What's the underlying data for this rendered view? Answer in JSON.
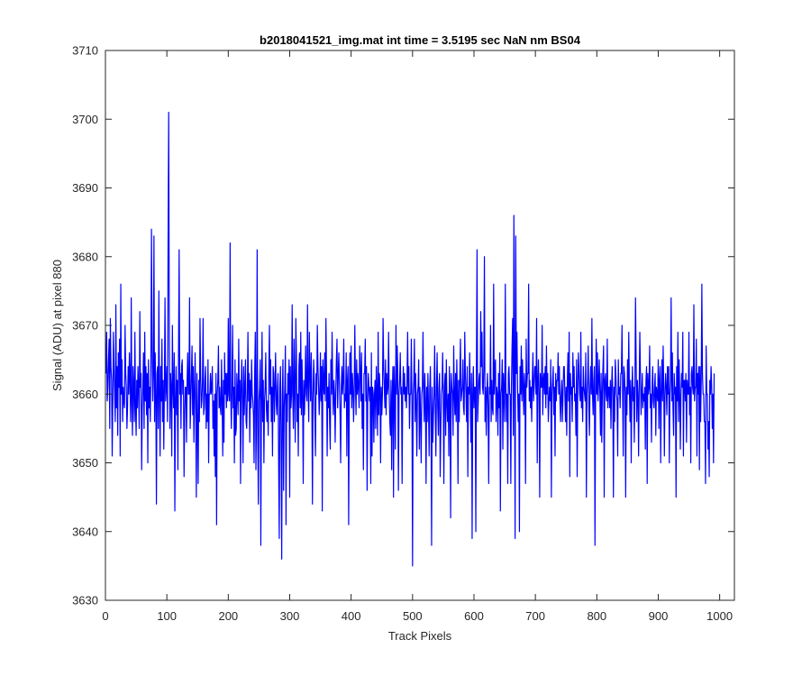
{
  "chart_data": {
    "type": "line",
    "title": "b2018041521_img.mat int time = 3.5195 sec  NaN nm BS04",
    "xlabel": "Track Pixels",
    "ylabel": "Signal (ADU) at pixel 880",
    "xlim": [
      0,
      1024
    ],
    "ylim": [
      3630,
      3710
    ],
    "xticks": [
      0,
      100,
      200,
      300,
      400,
      500,
      600,
      700,
      800,
      900,
      1000
    ],
    "yticks": [
      3630,
      3640,
      3650,
      3660,
      3670,
      3680,
      3690,
      3700,
      3710
    ],
    "grid": false,
    "series": [
      {
        "color": "#0000ff",
        "x_start": 1,
        "x_step": 1,
        "values": [
          3663,
          3669,
          3659,
          3661,
          3665,
          3668,
          3655,
          3671,
          3664,
          3662,
          3651,
          3659,
          3669,
          3664,
          3660,
          3656,
          3673,
          3658,
          3664,
          3654,
          3666,
          3661,
          3668,
          3651,
          3676,
          3660,
          3665,
          3656,
          3661,
          3659,
          3658,
          3670,
          3663,
          3661,
          3655,
          3658,
          3664,
          3660,
          3666,
          3662,
          3656,
          3674,
          3659,
          3654,
          3664,
          3661,
          3656,
          3669,
          3658,
          3654,
          3662,
          3658,
          3664,
          3661,
          3655,
          3672,
          3661,
          3663,
          3649,
          3658,
          3661,
          3666,
          3655,
          3669,
          3659,
          3664,
          3657,
          3663,
          3650,
          3665,
          3658,
          3661,
          3656,
          3664,
          3684,
          3667,
          3659,
          3663,
          3683,
          3656,
          3666,
          3660,
          3644,
          3663,
          3664,
          3655,
          3675,
          3660,
          3651,
          3664,
          3659,
          3668,
          3656,
          3662,
          3652,
          3661,
          3674,
          3659,
          3661,
          3664,
          3656,
          3682,
          3701,
          3668,
          3655,
          3663,
          3661,
          3651,
          3670,
          3661,
          3658,
          3666,
          3643,
          3659,
          3664,
          3657,
          3662,
          3649,
          3666,
          3681,
          3660,
          3663,
          3655,
          3664,
          3665,
          3660,
          3662,
          3648,
          3657,
          3661,
          3661,
          3653,
          3662,
          3666,
          3660,
          3660,
          3674,
          3655,
          3659,
          3663,
          3667,
          3657,
          3664,
          3653,
          3660,
          3666,
          3658,
          3645,
          3663,
          3656,
          3647,
          3662,
          3656,
          3671,
          3663,
          3658,
          3659,
          3662,
          3671,
          3657,
          3658,
          3662,
          3664,
          3655,
          3660,
          3656,
          3665,
          3650,
          3660,
          3660,
          3663,
          3660,
          3661,
          3664,
          3655,
          3659,
          3651,
          3660,
          3648,
          3663,
          3641,
          3660,
          3662,
          3667,
          3658,
          3661,
          3658,
          3657,
          3665,
          3659,
          3651,
          3662,
          3653,
          3666,
          3660,
          3663,
          3658,
          3663,
          3659,
          3671,
          3660,
          3659,
          3682,
          3660,
          3655,
          3661,
          3670,
          3658,
          3661,
          3650,
          3665,
          3654,
          3655,
          3663,
          3660,
          3657,
          3668,
          3659,
          3662,
          3647,
          3661,
          3665,
          3659,
          3650,
          3664,
          3657,
          3661,
          3665,
          3656,
          3655,
          3660,
          3669,
          3659,
          3663,
          3653,
          3662,
          3658,
          3665,
          3660,
          3659,
          3657,
          3650,
          3663,
          3669,
          3649,
          3657,
          3681,
          3653,
          3644,
          3659,
          3661,
          3665,
          3638,
          3660,
          3669,
          3656,
          3662,
          3650,
          3659,
          3661,
          3666,
          3658,
          3656,
          3659,
          3654,
          3663,
          3670,
          3660,
          3665,
          3656,
          3661,
          3651,
          3664,
          3663,
          3656,
          3661,
          3666,
          3659,
          3657,
          3661,
          3663,
          3650,
          3639,
          3661,
          3664,
          3653,
          3636,
          3660,
          3665,
          3646,
          3658,
          3661,
          3667,
          3641,
          3660,
          3656,
          3663,
          3660,
          3665,
          3645,
          3664,
          3658,
          3660,
          3673,
          3660,
          3655,
          3668,
          3661,
          3653,
          3671,
          3665,
          3656,
          3660,
          3651,
          3664,
          3666,
          3658,
          3669,
          3657,
          3665,
          3660,
          3647,
          3662,
          3657,
          3661,
          3667,
          3660,
          3659,
          3673,
          3661,
          3656,
          3669,
          3663,
          3659,
          3666,
          3660,
          3644,
          3659,
          3665,
          3662,
          3657,
          3651,
          3663,
          3660,
          3670,
          3664,
          3661,
          3657,
          3660,
          3666,
          3659,
          3664,
          3643,
          3665,
          3662,
          3660,
          3666,
          3659,
          3671,
          3663,
          3651,
          3661,
          3658,
          3663,
          3656,
          3652,
          3665,
          3660,
          3669,
          3661,
          3657,
          3662,
          3660,
          3653,
          3660,
          3665,
          3668,
          3658,
          3663,
          3666,
          3661,
          3657,
          3650,
          3661,
          3664,
          3660,
          3662,
          3668,
          3658,
          3660,
          3659,
          3666,
          3651,
          3662,
          3664,
          3641,
          3659,
          3666,
          3660,
          3667,
          3658,
          3663,
          3661,
          3656,
          3660,
          3670,
          3662,
          3657,
          3665,
          3660,
          3663,
          3661,
          3658,
          3667,
          3663,
          3659,
          3666,
          3655,
          3660,
          3649,
          3663,
          3663,
          3668,
          3659,
          3664,
          3646,
          3659,
          3663,
          3661,
          3659,
          3661,
          3647,
          3666,
          3651,
          3661,
          3660,
          3653,
          3660,
          3662,
          3655,
          3664,
          3660,
          3654,
          3669,
          3657,
          3663,
          3661,
          3650,
          3661,
          3657,
          3660,
          3671,
          3664,
          3661,
          3658,
          3665,
          3657,
          3663,
          3660,
          3661,
          3669,
          3660,
          3656,
          3654,
          3662,
          3649,
          3660,
          3664,
          3645,
          3664,
          3660,
          3652,
          3670,
          3660,
          3667,
          3663,
          3646,
          3660,
          3662,
          3666,
          3660,
          3661,
          3647,
          3660,
          3664,
          3660,
          3663,
          3659,
          3661,
          3658,
          3662,
          3669,
          3660,
          3664,
          3655,
          3660,
          3660,
          3668,
          3659,
          3635,
          3660,
          3662,
          3668,
          3656,
          3663,
          3659,
          3651,
          3660,
          3661,
          3665,
          3652,
          3661,
          3657,
          3650,
          3660,
          3661,
          3669,
          3660,
          3656,
          3663,
          3659,
          3647,
          3661,
          3656,
          3663,
          3658,
          3651,
          3661,
          3664,
          3657,
          3638,
          3661,
          3653,
          3657,
          3660,
          3667,
          3658,
          3651,
          3661,
          3666,
          3658,
          3654,
          3661,
          3663,
          3648,
          3655,
          3660,
          3661,
          3666,
          3660,
          3647,
          3661,
          3663,
          3654,
          3665,
          3659,
          3656,
          3660,
          3651,
          3664,
          3660,
          3642,
          3663,
          3661,
          3660,
          3654,
          3667,
          3660,
          3657,
          3663,
          3656,
          3665,
          3660,
          3647,
          3662,
          3656,
          3663,
          3668,
          3659,
          3660,
          3661,
          3665,
          3658,
          3657,
          3669,
          3663,
          3660,
          3656,
          3664,
          3648,
          3661,
          3660,
          3666,
          3660,
          3653,
          3663,
          3639,
          3660,
          3664,
          3658,
          3661,
          3661,
          3640,
          3664,
          3681,
          3656,
          3659,
          3662,
          3663,
          3660,
          3672,
          3664,
          3669,
          3661,
          3660,
          3664,
          3680,
          3656,
          3661,
          3654,
          3660,
          3663,
          3658,
          3647,
          3661,
          3660,
          3670,
          3656,
          3662,
          3658,
          3657,
          3676,
          3660,
          3664,
          3665,
          3656,
          3661,
          3660,
          3654,
          3663,
          3658,
          3666,
          3643,
          3660,
          3661,
          3665,
          3652,
          3663,
          3660,
          3656,
          3676,
          3661,
          3656,
          3660,
          3647,
          3663,
          3664,
          3660,
          3660,
          3647,
          3661,
          3667,
          3671,
          3654,
          3686,
          3664,
          3639,
          3683,
          3663,
          3669,
          3661,
          3656,
          3660,
          3640,
          3664,
          3660,
          3667,
          3659,
          3665,
          3661,
          3657,
          3663,
          3661,
          3647,
          3668,
          3661,
          3663,
          3663,
          3676,
          3659,
          3662,
          3658,
          3661,
          3656,
          3662,
          3666,
          3659,
          3661,
          3664,
          3664,
          3660,
          3671,
          3650,
          3662,
          3665,
          3660,
          3645,
          3663,
          3661,
          3661,
          3670,
          3657,
          3662,
          3663,
          3660,
          3664,
          3658,
          3667,
          3660,
          3663,
          3656,
          3659,
          3661,
          3659,
          3665,
          3645,
          3660,
          3662,
          3664,
          3657,
          3661,
          3651,
          3663,
          3659,
          3662,
          3662,
          3666,
          3660,
          3664,
          3659,
          3656,
          3660,
          3662,
          3656,
          3660,
          3664,
          3664,
          3660,
          3656,
          3661,
          3654,
          3662,
          3666,
          3659,
          3669,
          3648,
          3663,
          3660,
          3661,
          3656,
          3666,
          3661,
          3664,
          3659,
          3660,
          3654,
          3665,
          3648,
          3661,
          3666,
          3663,
          3660,
          3659,
          3669,
          3658,
          3661,
          3656,
          3664,
          3661,
          3660,
          3659,
          3666,
          3645,
          3660,
          3662,
          3667,
          3658,
          3654,
          3661,
          3664,
          3660,
          3671,
          3660,
          3657,
          3662,
          3664,
          3638,
          3659,
          3668,
          3660,
          3666,
          3659,
          3662,
          3665,
          3660,
          3654,
          3663,
          3653,
          3660,
          3664,
          3667,
          3645,
          3662,
          3663,
          3660,
          3659,
          3668,
          3658,
          3661,
          3661,
          3658,
          3662,
          3655,
          3661,
          3664,
          3660,
          3645,
          3661,
          3656,
          3665,
          3663,
          3660,
          3659,
          3651,
          3665,
          3660,
          3661,
          3658,
          3663,
          3663,
          3670,
          3660,
          3651,
          3664,
          3663,
          3660,
          3645,
          3661,
          3657,
          3665,
          3660,
          3669,
          3661,
          3656,
          3662,
          3650,
          3660,
          3664,
          3659,
          3661,
          3653,
          3660,
          3674,
          3665,
          3656,
          3662,
          3660,
          3651,
          3661,
          3669,
          3663,
          3657,
          3660,
          3663,
          3658,
          3660,
          3659,
          3661,
          3652,
          3662,
          3664,
          3647,
          3663,
          3660,
          3661,
          3667,
          3658,
          3660,
          3653,
          3661,
          3664,
          3659,
          3658,
          3661,
          3663,
          3654,
          3661,
          3660,
          3659,
          3665,
          3655,
          3662,
          3664,
          3650,
          3660,
          3665,
          3659,
          3667,
          3661,
          3651,
          3660,
          3663,
          3661,
          3657,
          3664,
          3660,
          3664,
          3650,
          3660,
          3662,
          3674,
          3659,
          3666,
          3658,
          3654,
          3663,
          3660,
          3661,
          3645,
          3664,
          3659,
          3669,
          3656,
          3665,
          3660,
          3652,
          3660,
          3663,
          3661,
          3669,
          3651,
          3662,
          3662,
          3659,
          3663,
          3653,
          3662,
          3660,
          3660,
          3669,
          3657,
          3661,
          3650,
          3663,
          3664,
          3661,
          3660,
          3673,
          3659,
          3661,
          3661,
          3668,
          3651,
          3663,
          3660,
          3664,
          3649,
          3664,
          3656,
          3662,
          3676,
          3663,
          3660,
          3660,
          3656,
          3656,
          3647,
          3667,
          3660,
          3660,
          3652,
          3656,
          3648,
          3662,
          3660,
          3664,
          3661,
          3655,
          3660,
          3650,
          3663
        ]
      }
    ]
  }
}
